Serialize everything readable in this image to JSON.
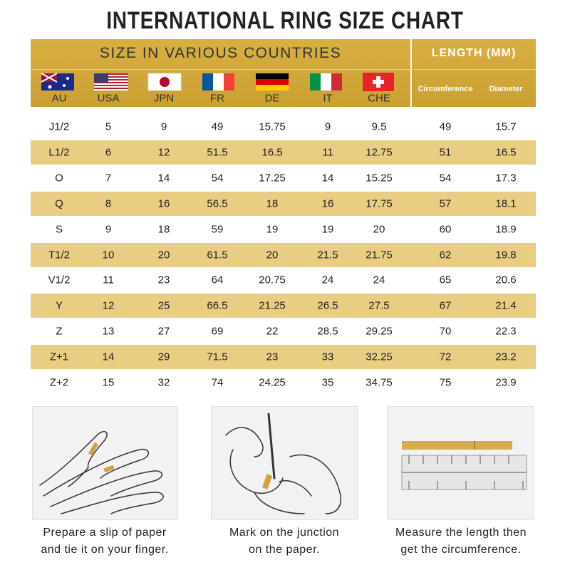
{
  "header": {
    "title": "INTERNATIONAL RING SIZE CHART",
    "band_left": "SIZE IN VARIOUS COUNTRIES",
    "band_right": "LENGTH (MM)"
  },
  "table": {
    "columns": [
      "AU",
      "USA",
      "JPN",
      "FR",
      "DE",
      "IT",
      "CHE",
      "Circumference",
      "Diameter"
    ],
    "rows": [
      [
        "J1/2",
        "5",
        "9",
        "49",
        "15.75",
        "9",
        "9.5",
        "49",
        "15.7"
      ],
      [
        "L1/2",
        "6",
        "12",
        "51.5",
        "16.5",
        "11",
        "12.75",
        "51",
        "16.5"
      ],
      [
        "O",
        "7",
        "14",
        "54",
        "17.25",
        "14",
        "15.25",
        "54",
        "17.3"
      ],
      [
        "Q",
        "8",
        "16",
        "56.5",
        "18",
        "16",
        "17.75",
        "57",
        "18.1"
      ],
      [
        "S",
        "9",
        "18",
        "59",
        "19",
        "19",
        "20",
        "60",
        "18.9"
      ],
      [
        "T1/2",
        "10",
        "20",
        "61.5",
        "20",
        "21.5",
        "21.75",
        "62",
        "19.8"
      ],
      [
        "V1/2",
        "11",
        "23",
        "64",
        "20.75",
        "24",
        "24",
        "65",
        "20.6"
      ],
      [
        "Y",
        "12",
        "25",
        "66.5",
        "21.25",
        "26.5",
        "27.5",
        "67",
        "21.4"
      ],
      [
        "Z",
        "13",
        "27",
        "69",
        "22",
        "28.5",
        "29.25",
        "70",
        "22.3"
      ],
      [
        "Z+1",
        "14",
        "29",
        "71.5",
        "23",
        "33",
        "32.25",
        "72",
        "23.2"
      ],
      [
        "Z+2",
        "15",
        "32",
        "74",
        "24.25",
        "35",
        "34.75",
        "75",
        "23.9"
      ]
    ]
  },
  "steps": [
    {
      "lines": [
        "Prepare a slip of paper",
        "and tie it on your finger."
      ]
    },
    {
      "lines": [
        "Mark on the junction",
        "on the paper."
      ]
    },
    {
      "lines": [
        "Measure the length then",
        "get the circumference."
      ]
    }
  ]
}
